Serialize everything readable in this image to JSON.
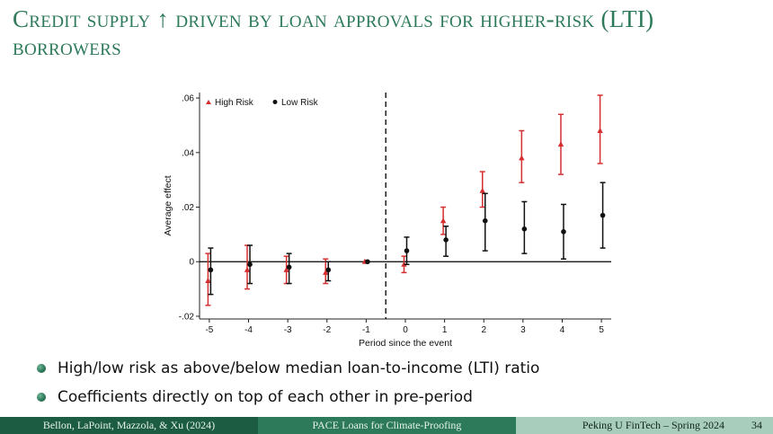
{
  "slide": {
    "title": "Credit supply ↑ driven by loan approvals for higher-risk (LTI) borrowers",
    "bullets": [
      "High/low risk as above/below median loan-to-income (LTI) ratio",
      "Coefficients directly on top of each other in pre-period"
    ],
    "footer": {
      "authors": "Bellon, LaPoint, Mazzola, & Xu (2024)",
      "paper_title": "PACE Loans for Climate-Proofing",
      "venue": "Peking U FinTech – Spring 2024",
      "page": "34"
    }
  },
  "chart_data": {
    "type": "scatter",
    "subtype": "event-study coefficients with confidence intervals",
    "xlabel": "Period since the event",
    "ylabel": "Average effect",
    "x_ticks": [
      -5,
      -4,
      -3,
      -2,
      -1,
      0,
      1,
      2,
      3,
      4,
      5
    ],
    "y_ticks": [
      -0.02,
      0,
      0.02,
      0.04,
      0.06
    ],
    "y_tick_labels": [
      "-.02",
      "0",
      ".02",
      ".04",
      ".06"
    ],
    "ylim": [
      -0.021,
      0.062
    ],
    "xlim": [
      -5.25,
      5.25
    ],
    "event_line_x": -0.5,
    "zero_line": true,
    "grid": false,
    "legend": {
      "placement": "top-left",
      "entries": [
        "High Risk",
        "Low Risk"
      ]
    },
    "series": [
      {
        "name": "High Risk",
        "marker": "triangle",
        "color": "#d62f2f",
        "x": [
          -5,
          -4,
          -3,
          -2,
          -1,
          0,
          1,
          2,
          3,
          4,
          5
        ],
        "y": [
          -0.007,
          -0.003,
          -0.003,
          -0.004,
          0.0,
          -0.001,
          0.015,
          0.026,
          0.038,
          0.043,
          0.048
        ],
        "ci_low": [
          -0.016,
          -0.01,
          -0.008,
          -0.008,
          0.0,
          -0.004,
          0.01,
          0.02,
          0.029,
          0.032,
          0.036
        ],
        "ci_high": [
          0.003,
          0.006,
          0.002,
          0.001,
          0.0,
          0.002,
          0.02,
          0.033,
          0.048,
          0.054,
          0.061
        ]
      },
      {
        "name": "Low Risk",
        "marker": "circle",
        "color": "#111111",
        "x": [
          -5,
          -4,
          -3,
          -2,
          -1,
          0,
          1,
          2,
          3,
          4,
          5
        ],
        "y": [
          -0.003,
          -0.001,
          -0.002,
          -0.003,
          0.0,
          0.004,
          0.008,
          0.015,
          0.012,
          0.011,
          0.017
        ],
        "ci_low": [
          -0.012,
          -0.008,
          -0.008,
          -0.007,
          0.0,
          -0.001,
          0.002,
          0.004,
          0.003,
          0.001,
          0.005
        ],
        "ci_high": [
          0.005,
          0.006,
          0.003,
          0.0,
          0.0,
          0.009,
          0.013,
          0.025,
          0.022,
          0.021,
          0.029
        ]
      }
    ]
  }
}
